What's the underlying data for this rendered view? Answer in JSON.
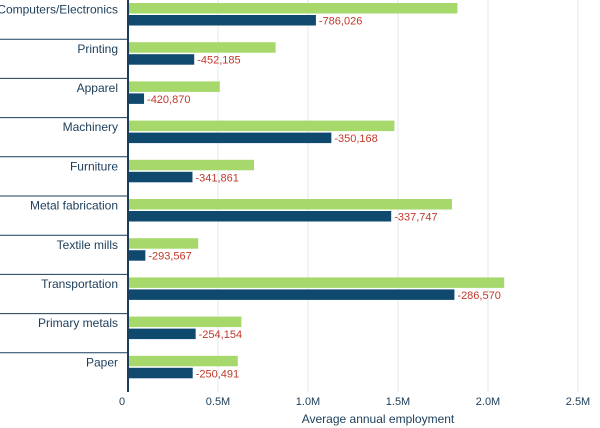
{
  "chart_data": {
    "type": "bar",
    "orientation": "horizontal",
    "xlabel": "Average annual employment",
    "xlim": [
      0,
      2500000
    ],
    "ticks": [
      {
        "value": 0,
        "label": "0"
      },
      {
        "value": 500000,
        "label": "0.5M"
      },
      {
        "value": 1000000,
        "label": "1.0M"
      },
      {
        "value": 1500000,
        "label": "1.5M"
      },
      {
        "value": 2000000,
        "label": "2.0M"
      },
      {
        "value": 2500000,
        "label": "2.5M"
      }
    ],
    "grid": true,
    "colors": {
      "series1": "#a6d86c",
      "series2": "#0f4a6e",
      "data_label": "#c0392b",
      "text": "#1c3d5a"
    },
    "categories": [
      "Computers/Electronics",
      "Printing",
      "Apparel",
      "Machinery",
      "Furniture",
      "Metal fabrication",
      "Textile mills",
      "Transportation",
      "Primary metals",
      "Paper"
    ],
    "series": [
      {
        "values": [
          1830000,
          820000,
          510000,
          1480000,
          700000,
          1800000,
          390000,
          2090000,
          630000,
          610000
        ]
      },
      {
        "values": [
          1043974,
          367815,
          89130,
          1129832,
          358139,
          1462253,
          96433,
          1813430,
          375846,
          359509
        ]
      }
    ],
    "data_labels": [
      "-786,026",
      "-452,185",
      "-420,870",
      "-350,168",
      "-341,861",
      "-337,747",
      "-293,567",
      "-286,570",
      "-254,154",
      "-250,491"
    ]
  }
}
